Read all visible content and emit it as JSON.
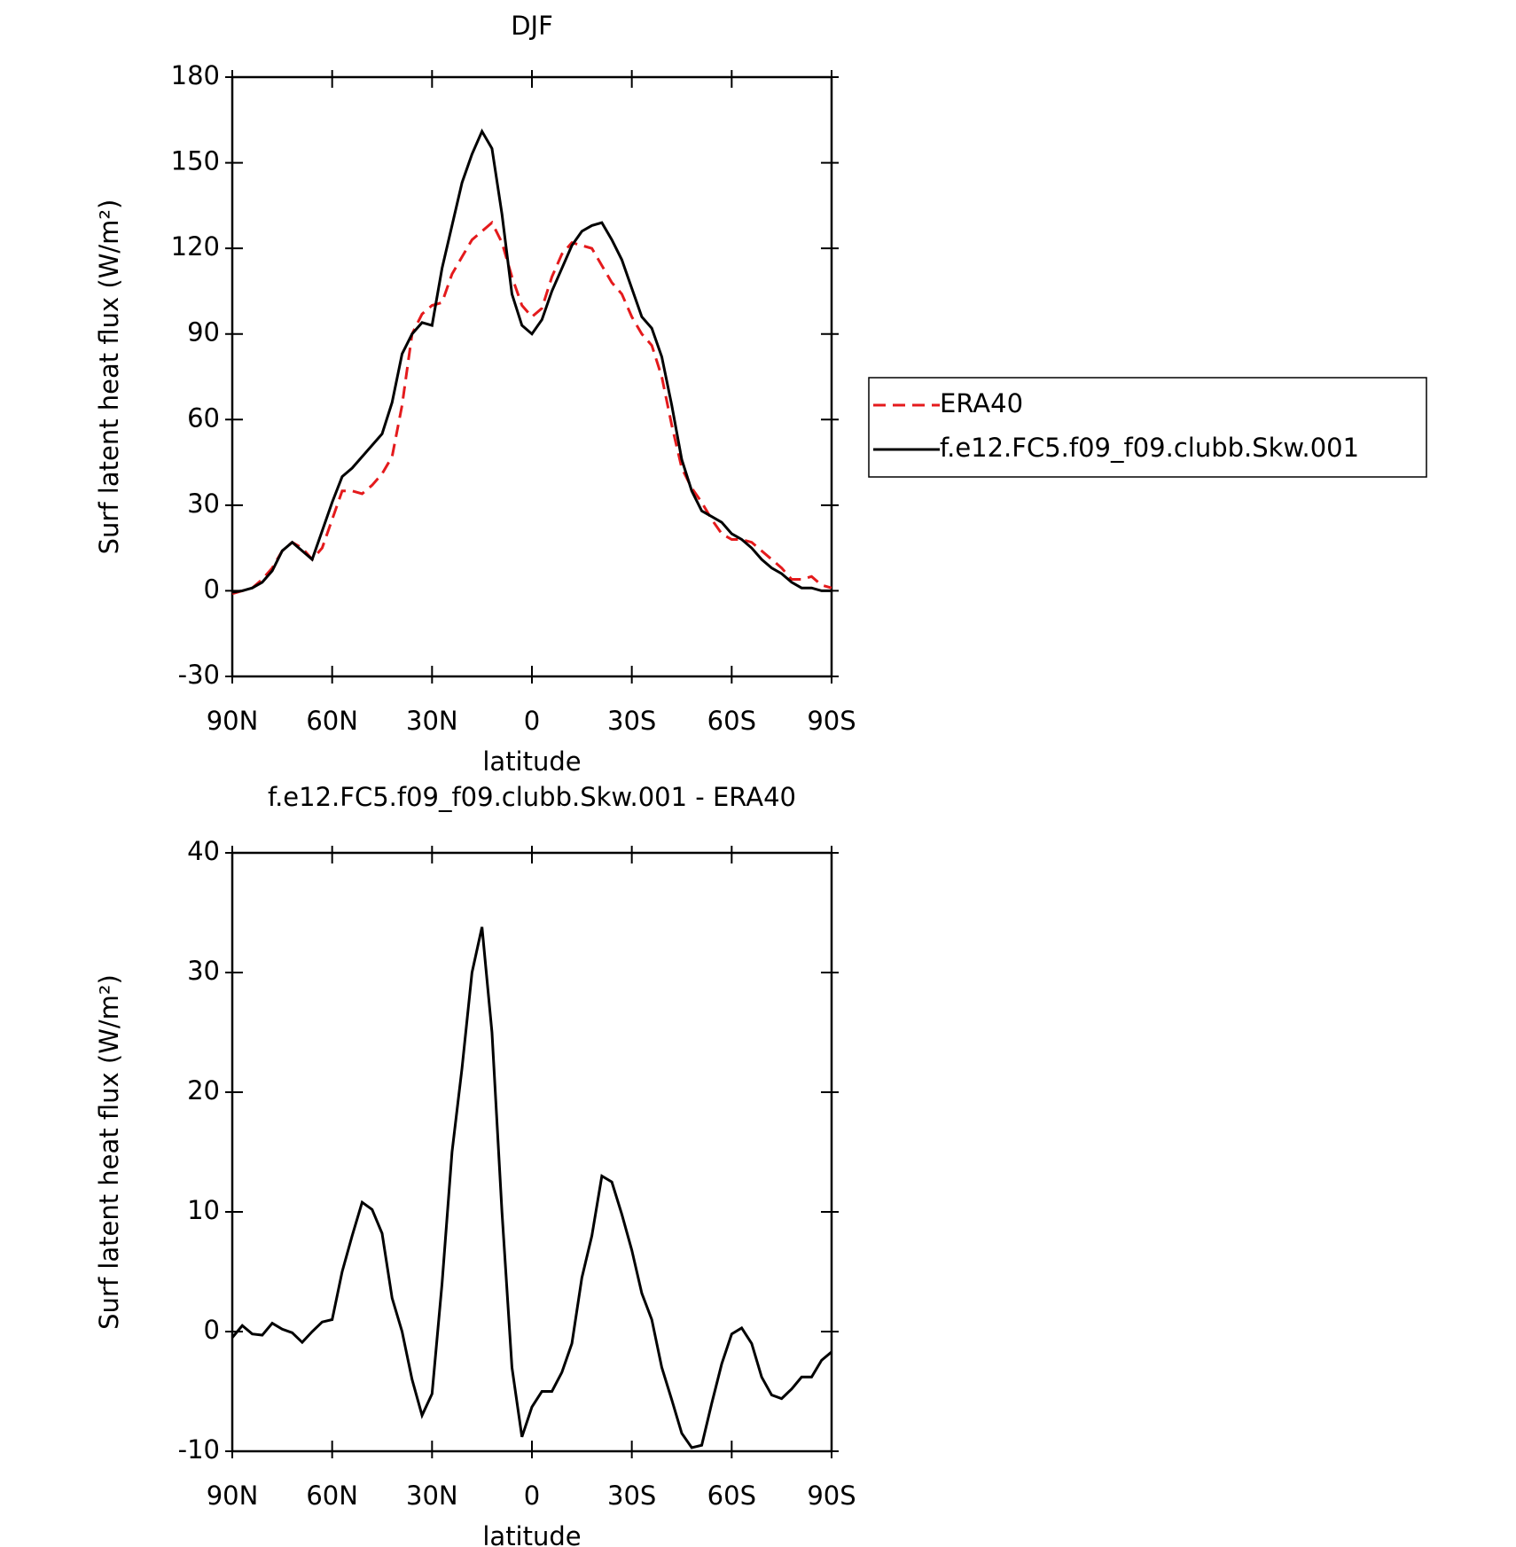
{
  "chart_data": [
    {
      "type": "line",
      "title": "DJF",
      "x_label": "latitude",
      "y_label": "Surf latent heat flux (W/m²)",
      "x": [
        90,
        87,
        84,
        81,
        78,
        75,
        72,
        69,
        66,
        63,
        60,
        57,
        54,
        51,
        48,
        45,
        42,
        39,
        36,
        33,
        30,
        27,
        24,
        21,
        18,
        15,
        12,
        9,
        6,
        3,
        0,
        -3,
        -6,
        -9,
        -12,
        -15,
        -18,
        -21,
        -24,
        -27,
        -30,
        -33,
        -36,
        -39,
        -42,
        -45,
        -48,
        -51,
        -54,
        -57,
        -60,
        -63,
        -66,
        -69,
        -72,
        -75,
        -78,
        -81,
        -84,
        -87,
        -90
      ],
      "series": [
        {
          "name": "ERA40",
          "color": "#e41a1c",
          "line_style": "dashed",
          "values": [
            -1,
            0,
            1,
            4,
            8,
            14,
            17,
            15,
            11,
            15,
            25,
            35,
            35,
            34,
            37,
            41,
            47,
            65,
            90,
            97,
            100,
            101,
            111,
            117,
            123,
            126,
            129,
            122,
            110,
            100,
            96,
            99,
            110,
            118,
            122,
            121,
            120,
            114,
            108,
            104,
            96,
            90,
            86,
            75,
            58,
            43,
            36,
            31,
            25,
            20,
            18,
            18,
            17,
            14,
            11,
            8,
            4,
            4,
            5,
            2,
            1
          ]
        },
        {
          "name": "f.e12.FC5.f09_f09.clubb.Skw.001",
          "color": "#000000",
          "line_style": "solid",
          "values": [
            -0.5,
            0,
            1,
            3,
            7,
            14,
            17,
            14,
            11,
            21,
            31,
            40,
            43,
            47,
            51,
            55,
            66,
            83,
            90,
            94,
            93,
            113,
            128,
            143,
            153,
            161,
            155,
            132,
            104,
            93,
            90,
            95,
            105,
            113,
            121,
            126,
            128,
            129,
            123,
            116,
            106,
            96,
            92,
            82,
            65,
            46,
            35,
            28,
            26,
            24,
            20,
            18,
            15,
            11,
            8,
            6,
            3,
            1,
            1,
            0,
            0
          ]
        }
      ],
      "xlim": [
        90,
        -90
      ],
      "xticks": [
        {
          "value": 90,
          "label": "90N"
        },
        {
          "value": 60,
          "label": "60N"
        },
        {
          "value": 30,
          "label": "30N"
        },
        0,
        {
          "value": -30,
          "label": "30S"
        },
        {
          "value": -60,
          "label": "60S"
        },
        {
          "value": -90,
          "label": "90S"
        }
      ],
      "ylim": [
        -30,
        180
      ],
      "yticks": [
        -30,
        0,
        30,
        60,
        90,
        120,
        150,
        180
      ],
      "legend": "right"
    },
    {
      "type": "line",
      "title": "f.e12.FC5.f09_f09.clubb.Skw.001 - ERA40",
      "x_label": "latitude",
      "y_label": "Surf latent heat flux (W/m²)",
      "x": [
        90,
        87,
        84,
        81,
        78,
        75,
        72,
        69,
        66,
        63,
        60,
        57,
        54,
        51,
        48,
        45,
        42,
        39,
        36,
        33,
        30,
        27,
        24,
        21,
        18,
        15,
        12,
        9,
        6,
        3,
        0,
        -3,
        -6,
        -9,
        -12,
        -15,
        -18,
        -21,
        -24,
        -27,
        -30,
        -33,
        -36,
        -39,
        -42,
        -45,
        -48,
        -51,
        -54,
        -57,
        -60,
        -63,
        -66,
        -69,
        -72,
        -75,
        -78,
        -81,
        -84,
        -87,
        -90
      ],
      "series": [
        {
          "color": "#000000",
          "line_style": "solid",
          "values": [
            -0.5,
            0.5,
            -0.2,
            -0.3,
            0.7,
            0.2,
            -0.1,
            -0.9,
            0,
            0.8,
            1,
            5,
            8,
            10.8,
            10.2,
            8.2,
            2.8,
            0,
            -4,
            -7,
            -5.2,
            4,
            15,
            22,
            30,
            33.8,
            25,
            10,
            -3,
            -8.8,
            -6.3,
            -5,
            -5,
            -3.4,
            -1,
            4.5,
            8,
            13,
            12.5,
            9.8,
            6.8,
            3.2,
            1,
            -3,
            -5.7,
            -8.5,
            -9.7,
            -9.5,
            -6,
            -2.7,
            -0.2,
            0.3,
            -1,
            -3.8,
            -5.3,
            -5.6,
            -4.8,
            -3.8,
            -3.8,
            -2.4,
            -1.7
          ]
        }
      ],
      "xlim": [
        90,
        -90
      ],
      "xticks": [
        {
          "value": 90,
          "label": "90N"
        },
        {
          "value": 60,
          "label": "60N"
        },
        {
          "value": 30,
          "label": "30N"
        },
        0,
        {
          "value": -30,
          "label": "30S"
        },
        {
          "value": -60,
          "label": "60S"
        },
        {
          "value": -90,
          "label": "90S"
        }
      ],
      "ylim": [
        -10,
        40
      ],
      "yticks": [
        -10,
        0,
        10,
        20,
        30,
        40
      ]
    }
  ]
}
